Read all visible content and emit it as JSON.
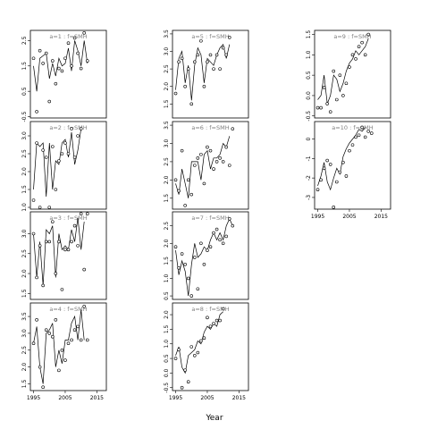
{
  "chart_data": {
    "type": "scatter",
    "xlabel": "Year",
    "ylabel": "",
    "x_ticks": [
      1995,
      2005,
      2015
    ],
    "xlim": [
      1994,
      2018
    ],
    "years": [
      1995,
      1996,
      1997,
      1998,
      1999,
      2000,
      2001,
      2002,
      2003,
      2004,
      2005,
      2006,
      2007,
      2008,
      2009,
      2010,
      2011,
      2012,
      2013,
      2014,
      2015,
      2016,
      2017
    ],
    "panels": [
      {
        "label": "a=1 : f=SMH",
        "ylim": [
          -0.55,
          2.9
        ],
        "y_ticks": [
          -0.5,
          0.5,
          1.5,
          2.5
        ],
        "y_tick_labels": [
          "-0.5",
          "0.5",
          "1.5",
          "2.5"
        ],
        "line": [
          1.5,
          0.5,
          1.8,
          1.9,
          2.0,
          1.0,
          1.6,
          1.1,
          1.8,
          1.5,
          1.6,
          2.2,
          1.3,
          2.5,
          2.1,
          1.5,
          2.5,
          1.6,
          null,
          null,
          null,
          null,
          null
        ],
        "points": [
          1.8,
          -0.3,
          2.1,
          1.6,
          2.0,
          0.1,
          1.7,
          0.8,
          1.4,
          1.3,
          1.8,
          2.4,
          1.5,
          2.6,
          2.0,
          1.4,
          2.8,
          1.7,
          null,
          null,
          null,
          null,
          null
        ]
      },
      {
        "label": "a=2 : f=SMH",
        "ylim": [
          0.95,
          3.4
        ],
        "y_ticks": [
          1.0,
          1.5,
          2.0,
          2.5,
          3.0
        ],
        "y_tick_labels": [
          "1.0",
          "1.5",
          "2.0",
          "2.5",
          "3.0"
        ],
        "line": [
          1.5,
          2.8,
          2.7,
          2.8,
          1.3,
          2.8,
          1.5,
          2.3,
          2.2,
          2.8,
          2.9,
          2.4,
          3.1,
          2.2,
          2.6,
          3.2,
          null,
          null,
          null,
          null,
          null,
          null,
          null
        ],
        "points": [
          1.2,
          2.8,
          1.0,
          2.6,
          2.4,
          1.0,
          2.7,
          1.5,
          2.3,
          2.5,
          2.8,
          2.5,
          3.2,
          2.4,
          3.0,
          3.2,
          null,
          null,
          null,
          null,
          null,
          null,
          null
        ]
      },
      {
        "label": "a=3 : f=SMH",
        "ylim": [
          1.35,
          3.55
        ],
        "y_ticks": [
          1.5,
          2.0,
          2.5,
          3.0
        ],
        "y_tick_labels": [
          "1.5",
          "2.0",
          "2.5",
          "3.0"
        ],
        "line": [
          3.0,
          1.9,
          2.8,
          1.7,
          3.1,
          3.0,
          3.2,
          1.9,
          3.0,
          2.6,
          2.7,
          2.6,
          3.1,
          2.8,
          3.4,
          2.6,
          3.3,
          null,
          null,
          null,
          null,
          null,
          null
        ],
        "points": [
          3.0,
          1.9,
          2.7,
          1.7,
          2.8,
          2.8,
          3.3,
          2.0,
          2.8,
          1.6,
          2.6,
          2.6,
          2.8,
          3.2,
          2.7,
          3.5,
          2.1,
          3.5,
          null,
          null,
          null,
          null,
          null
        ]
      },
      {
        "label": "a=4 : f=SMH",
        "ylim": [
          1.3,
          3.9
        ],
        "y_ticks": [
          1.5,
          2.0,
          2.5,
          3.0,
          3.5
        ],
        "y_tick_labels": [
          "1.5",
          "2.0",
          "2.5",
          "3.0",
          "3.5"
        ],
        "line": [
          2.7,
          3.2,
          2.0,
          1.5,
          3.0,
          3.1,
          3.3,
          2.0,
          2.5,
          2.1,
          2.8,
          2.8,
          3.3,
          3.5,
          2.8,
          3.7,
          2.8,
          null,
          null,
          null,
          null,
          null,
          null
        ],
        "points": [
          2.7,
          3.4,
          2.0,
          1.4,
          3.1,
          3.0,
          2.9,
          3.4,
          1.9,
          2.5,
          2.2,
          2.7,
          2.8,
          3.1,
          3.2,
          2.8,
          3.8,
          2.8,
          null,
          null,
          null,
          null,
          null
        ]
      },
      {
        "label": "a=5 : f=SMH",
        "ylim": [
          1.1,
          3.6
        ],
        "y_ticks": [
          1.5,
          2.0,
          2.5,
          3.0,
          3.5
        ],
        "y_tick_labels": [
          "1.5",
          "2.0",
          "2.5",
          "3.0",
          "3.5"
        ],
        "line": [
          1.9,
          2.8,
          3.0,
          2.1,
          2.6,
          1.6,
          2.6,
          3.1,
          2.9,
          2.1,
          2.8,
          2.7,
          2.6,
          2.9,
          3.1,
          3.2,
          2.8,
          3.2,
          null,
          null,
          null,
          null,
          null
        ],
        "points": [
          1.8,
          2.7,
          2.8,
          2.0,
          2.5,
          1.5,
          2.7,
          2.9,
          3.3,
          2.0,
          2.7,
          2.9,
          2.5,
          2.9,
          2.5,
          3.1,
          2.9,
          3.4,
          null,
          null,
          null,
          null,
          null
        ]
      },
      {
        "label": "a=6 : f=SMH",
        "ylim": [
          1.2,
          3.6
        ],
        "y_ticks": [
          1.5,
          2.0,
          2.5,
          3.0,
          3.5
        ],
        "y_tick_labels": [
          "1.5",
          "2.0",
          "2.5",
          "3.0",
          "3.5"
        ],
        "line": [
          1.9,
          1.6,
          2.3,
          1.9,
          1.5,
          2.5,
          2.5,
          2.5,
          2.0,
          2.7,
          2.8,
          2.3,
          2.6,
          2.6,
          2.7,
          3.0,
          2.9,
          3.2,
          null,
          null,
          null,
          null,
          null
        ],
        "points": [
          2.0,
          1.7,
          2.8,
          1.3,
          2.0,
          1.6,
          2.4,
          2.6,
          2.7,
          1.9,
          2.9,
          2.8,
          2.3,
          2.5,
          2.6,
          2.5,
          2.9,
          2.4,
          3.4,
          null,
          null,
          null,
          null
        ]
      },
      {
        "label": "a=7 : f=SMH",
        "ylim": [
          0.4,
          2.9
        ],
        "y_ticks": [
          0.5,
          1.0,
          1.5,
          2.0,
          2.5
        ],
        "y_tick_labels": [
          "0.5",
          "1.0",
          "1.5",
          "2.0",
          "2.5"
        ],
        "line": [
          1.8,
          1.1,
          1.5,
          1.2,
          0.5,
          1.4,
          2.0,
          1.6,
          1.7,
          1.9,
          1.8,
          2.1,
          2.3,
          2.1,
          2.3,
          2.1,
          2.5,
          2.7,
          2.5,
          null,
          null,
          null,
          null
        ],
        "points": [
          1.9,
          1.3,
          1.7,
          1.4,
          1.0,
          0.5,
          1.6,
          0.7,
          2.0,
          1.4,
          1.8,
          1.9,
          2.3,
          2.4,
          2.1,
          2.0,
          2.2,
          2.7,
          2.5,
          null,
          null,
          null,
          null
        ]
      },
      {
        "label": "a=8 : f=SMH",
        "ylim": [
          -0.6,
          2.4
        ],
        "y_ticks": [
          -0.5,
          0.0,
          0.5,
          1.0,
          1.5,
          2.0
        ],
        "y_tick_labels": [
          "-0.5",
          "0.0",
          "0.5",
          "1.0",
          "1.5",
          "2.0"
        ],
        "line": [
          0.6,
          0.9,
          0.2,
          0.0,
          0.6,
          0.7,
          0.8,
          1.1,
          1.0,
          1.4,
          1.6,
          1.5,
          1.7,
          1.6,
          2.0,
          2.1,
          null,
          null,
          null,
          null,
          null,
          null,
          null
        ],
        "points": [
          0.5,
          0.8,
          -0.5,
          0.1,
          -0.3,
          0.9,
          0.6,
          0.7,
          1.1,
          1.2,
          1.9,
          1.6,
          1.7,
          1.8,
          1.8,
          2.2,
          null,
          null,
          null,
          null,
          null,
          null,
          null
        ]
      },
      {
        "label": "a=9 : f=SMH",
        "ylim": [
          -0.55,
          1.6
        ],
        "y_ticks": [
          -0.5,
          0.0,
          0.5,
          1.0,
          1.5
        ],
        "y_tick_labels": [
          "-0.5",
          "0.0",
          "0.5",
          "1.0",
          "1.5"
        ],
        "line": [
          -0.1,
          0.0,
          0.5,
          -0.2,
          0.0,
          0.5,
          0.4,
          0.1,
          0.3,
          0.6,
          0.8,
          0.9,
          1.1,
          1.0,
          1.1,
          1.2,
          1.4,
          null,
          null,
          null,
          null,
          null,
          null
        ],
        "points": [
          -0.3,
          -0.3,
          0.2,
          -0.2,
          -0.4,
          0.6,
          -0.1,
          0.5,
          0.0,
          0.3,
          0.7,
          1.0,
          0.9,
          1.2,
          1.3,
          1.0,
          1.5,
          null,
          null,
          null,
          null,
          null,
          null
        ]
      },
      {
        "label": "a=10 : f=SMH",
        "ylim": [
          -3.6,
          0.9
        ],
        "y_ticks": [
          -3,
          -2,
          -1,
          0
        ],
        "y_tick_labels": [
          "-3",
          "-2",
          "-1",
          "0"
        ],
        "line": [
          -2.4,
          -1.9,
          -1.2,
          -2.2,
          -2.6,
          -2.0,
          -1.5,
          -1.8,
          -0.9,
          -0.5,
          -0.2,
          0.0,
          0.2,
          0.5,
          0.4,
          0.6,
          null,
          null,
          null,
          null,
          null,
          null,
          null
        ],
        "points": [
          -2.6,
          -2.1,
          -1.5,
          -1.1,
          -1.3,
          -3.5,
          -2.2,
          -1.7,
          -1.2,
          -1.9,
          -0.6,
          -0.3,
          0.1,
          0.2,
          0.6,
          0.1,
          0.4,
          0.3,
          null,
          null,
          null,
          null,
          null
        ]
      }
    ]
  }
}
